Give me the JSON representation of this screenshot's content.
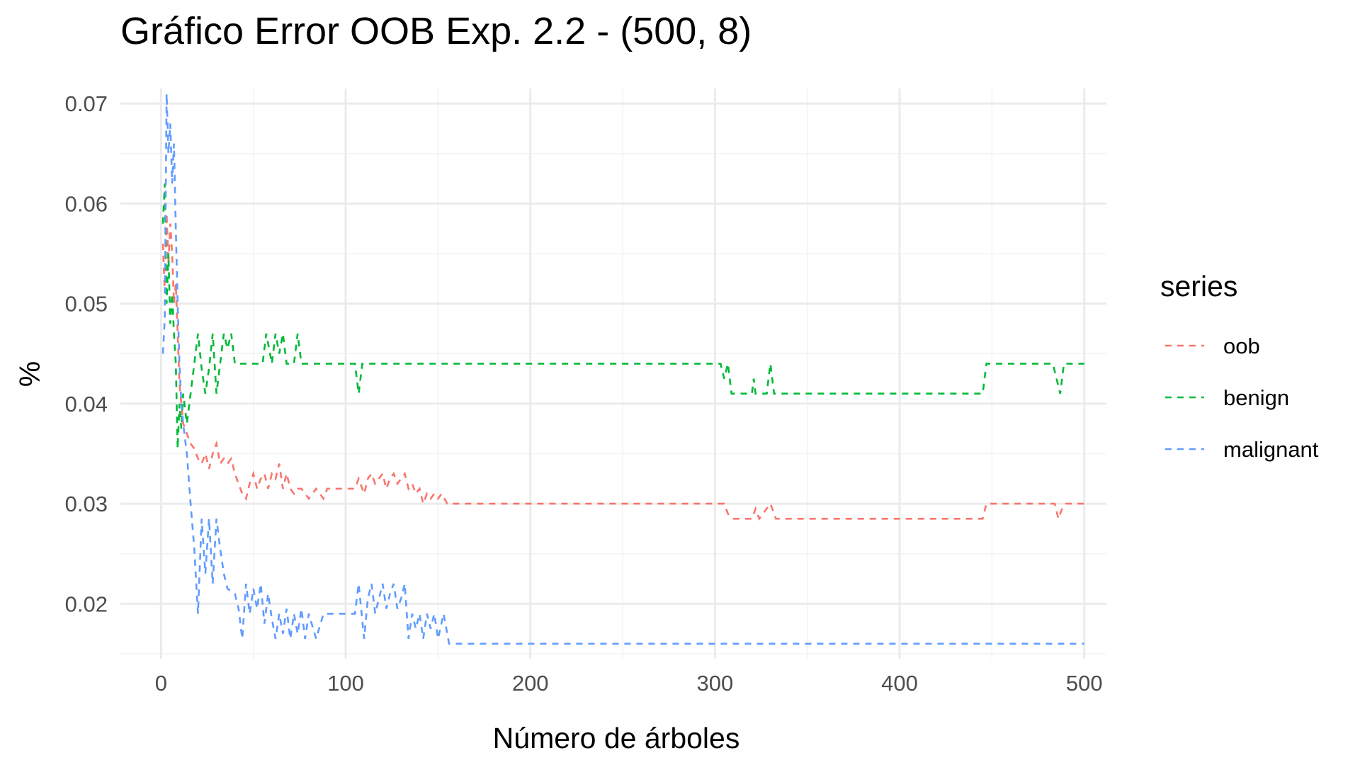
{
  "chart_data": {
    "type": "line",
    "title": "Gráfico Error OOB Exp. 2.2 - (500, 8)",
    "xlabel": "Número de árboles",
    "ylabel": "%",
    "xlim": [
      -22,
      512
    ],
    "ylim": [
      0.0145,
      0.0715
    ],
    "x_ticks": [
      0,
      100,
      200,
      300,
      400,
      500
    ],
    "x_tick_labels": [
      "0",
      "100",
      "200",
      "300",
      "400",
      "500"
    ],
    "x_minor_ticks": [
      50,
      150,
      250,
      350,
      450
    ],
    "y_ticks": [
      0.02,
      0.03,
      0.04,
      0.05,
      0.06,
      0.07
    ],
    "y_tick_labels": [
      "0.02",
      "0.03",
      "0.04",
      "0.05",
      "0.06",
      "0.07"
    ],
    "y_minor_ticks": [
      0.015,
      0.025,
      0.035,
      0.045,
      0.055,
      0.065
    ],
    "grid": true,
    "line_style": "dashed",
    "legend": {
      "title": "series",
      "position": "right"
    },
    "series": [
      {
        "name": "oob",
        "color": "#F8766D",
        "points": [
          [
            1,
            0.056
          ],
          [
            2,
            0.051
          ],
          [
            3,
            0.059
          ],
          [
            4,
            0.054
          ],
          [
            5,
            0.058
          ],
          [
            6,
            0.055
          ],
          [
            7,
            0.05
          ],
          [
            8,
            0.052
          ],
          [
            9,
            0.047
          ],
          [
            10,
            0.042
          ],
          [
            11,
            0.04
          ],
          [
            12,
            0.038
          ],
          [
            14,
            0.037
          ],
          [
            16,
            0.036
          ],
          [
            18,
            0.0355
          ],
          [
            20,
            0.0345
          ],
          [
            22,
            0.034
          ],
          [
            24,
            0.035
          ],
          [
            26,
            0.0335
          ],
          [
            28,
            0.035
          ],
          [
            30,
            0.036
          ],
          [
            32,
            0.034
          ],
          [
            34,
            0.0345
          ],
          [
            36,
            0.034
          ],
          [
            38,
            0.0345
          ],
          [
            40,
            0.033
          ],
          [
            42,
            0.032
          ],
          [
            44,
            0.031
          ],
          [
            46,
            0.0305
          ],
          [
            48,
            0.032
          ],
          [
            50,
            0.033
          ],
          [
            52,
            0.0315
          ],
          [
            54,
            0.0325
          ],
          [
            56,
            0.033
          ],
          [
            58,
            0.0315
          ],
          [
            60,
            0.033
          ],
          [
            62,
            0.0325
          ],
          [
            64,
            0.034
          ],
          [
            66,
            0.0315
          ],
          [
            68,
            0.033
          ],
          [
            70,
            0.0315
          ],
          [
            72,
            0.031
          ],
          [
            74,
            0.0315
          ],
          [
            76,
            0.0315
          ],
          [
            78,
            0.031
          ],
          [
            80,
            0.0305
          ],
          [
            84,
            0.0315
          ],
          [
            88,
            0.0305
          ],
          [
            90,
            0.0315
          ],
          [
            100,
            0.0315
          ],
          [
            105,
            0.0315
          ],
          [
            107,
            0.0325
          ],
          [
            110,
            0.031
          ],
          [
            112,
            0.0325
          ],
          [
            114,
            0.033
          ],
          [
            116,
            0.032
          ],
          [
            118,
            0.0325
          ],
          [
            120,
            0.033
          ],
          [
            122,
            0.0315
          ],
          [
            124,
            0.0325
          ],
          [
            126,
            0.033
          ],
          [
            128,
            0.032
          ],
          [
            130,
            0.0325
          ],
          [
            132,
            0.033
          ],
          [
            134,
            0.0315
          ],
          [
            136,
            0.032
          ],
          [
            138,
            0.031
          ],
          [
            140,
            0.0315
          ],
          [
            142,
            0.03
          ],
          [
            144,
            0.031
          ],
          [
            146,
            0.0305
          ],
          [
            148,
            0.031
          ],
          [
            150,
            0.0305
          ],
          [
            152,
            0.031
          ],
          [
            155,
            0.03
          ],
          [
            200,
            0.03
          ],
          [
            250,
            0.03
          ],
          [
            305,
            0.03
          ],
          [
            307,
            0.029
          ],
          [
            310,
            0.0285
          ],
          [
            320,
            0.0285
          ],
          [
            322,
            0.0295
          ],
          [
            324,
            0.0285
          ],
          [
            330,
            0.03
          ],
          [
            333,
            0.0285
          ],
          [
            400,
            0.0285
          ],
          [
            445,
            0.0285
          ],
          [
            447,
            0.03
          ],
          [
            450,
            0.03
          ],
          [
            484,
            0.03
          ],
          [
            486,
            0.0285
          ],
          [
            488,
            0.0295
          ],
          [
            490,
            0.03
          ],
          [
            500,
            0.03
          ]
        ]
      },
      {
        "name": "benign",
        "color": "#00BA38",
        "points": [
          [
            1,
            0.058
          ],
          [
            2,
            0.062
          ],
          [
            3,
            0.05
          ],
          [
            4,
            0.055
          ],
          [
            5,
            0.048
          ],
          [
            6,
            0.051
          ],
          [
            7,
            0.047
          ],
          [
            8,
            0.044
          ],
          [
            9,
            0.0355
          ],
          [
            10,
            0.04
          ],
          [
            11,
            0.0375
          ],
          [
            12,
            0.041
          ],
          [
            14,
            0.038
          ],
          [
            16,
            0.041
          ],
          [
            18,
            0.044
          ],
          [
            20,
            0.047
          ],
          [
            22,
            0.0435
          ],
          [
            24,
            0.041
          ],
          [
            26,
            0.0435
          ],
          [
            28,
            0.047
          ],
          [
            30,
            0.041
          ],
          [
            32,
            0.044
          ],
          [
            34,
            0.047
          ],
          [
            36,
            0.0455
          ],
          [
            38,
            0.047
          ],
          [
            40,
            0.044
          ],
          [
            45,
            0.044
          ],
          [
            55,
            0.044
          ],
          [
            57,
            0.047
          ],
          [
            60,
            0.044
          ],
          [
            62,
            0.047
          ],
          [
            64,
            0.045
          ],
          [
            66,
            0.047
          ],
          [
            68,
            0.044
          ],
          [
            72,
            0.044
          ],
          [
            74,
            0.047
          ],
          [
            76,
            0.044
          ],
          [
            100,
            0.044
          ],
          [
            105,
            0.044
          ],
          [
            107,
            0.041
          ],
          [
            109,
            0.044
          ],
          [
            200,
            0.044
          ],
          [
            250,
            0.044
          ],
          [
            303,
            0.044
          ],
          [
            305,
            0.0425
          ],
          [
            307,
            0.044
          ],
          [
            309,
            0.041
          ],
          [
            320,
            0.041
          ],
          [
            321,
            0.0425
          ],
          [
            322,
            0.041
          ],
          [
            328,
            0.041
          ],
          [
            330,
            0.044
          ],
          [
            332,
            0.041
          ],
          [
            400,
            0.041
          ],
          [
            445,
            0.041
          ],
          [
            447,
            0.044
          ],
          [
            450,
            0.044
          ],
          [
            483,
            0.044
          ],
          [
            485,
            0.0425
          ],
          [
            487,
            0.041
          ],
          [
            489,
            0.044
          ],
          [
            500,
            0.044
          ]
        ]
      },
      {
        "name": "malignant",
        "color": "#619CFF",
        "points": [
          [
            1,
            0.045
          ],
          [
            2,
            0.0485
          ],
          [
            3,
            0.071
          ],
          [
            4,
            0.065
          ],
          [
            5,
            0.068
          ],
          [
            6,
            0.062
          ],
          [
            7,
            0.066
          ],
          [
            8,
            0.0575
          ],
          [
            9,
            0.05
          ],
          [
            10,
            0.044
          ],
          [
            11,
            0.04
          ],
          [
            12,
            0.038
          ],
          [
            14,
            0.035
          ],
          [
            16,
            0.03
          ],
          [
            18,
            0.0255
          ],
          [
            20,
            0.019
          ],
          [
            22,
            0.0285
          ],
          [
            24,
            0.023
          ],
          [
            26,
            0.0285
          ],
          [
            28,
            0.022
          ],
          [
            30,
            0.0285
          ],
          [
            32,
            0.0255
          ],
          [
            34,
            0.023
          ],
          [
            36,
            0.0215
          ],
          [
            40,
            0.021
          ],
          [
            42,
            0.0195
          ],
          [
            44,
            0.0165
          ],
          [
            46,
            0.022
          ],
          [
            48,
            0.019
          ],
          [
            50,
            0.0215
          ],
          [
            52,
            0.0195
          ],
          [
            54,
            0.022
          ],
          [
            56,
            0.018
          ],
          [
            58,
            0.021
          ],
          [
            60,
            0.0185
          ],
          [
            62,
            0.0165
          ],
          [
            64,
            0.019
          ],
          [
            66,
            0.017
          ],
          [
            68,
            0.0195
          ],
          [
            70,
            0.0165
          ],
          [
            72,
            0.019
          ],
          [
            74,
            0.017
          ],
          [
            76,
            0.0195
          ],
          [
            78,
            0.0165
          ],
          [
            80,
            0.019
          ],
          [
            84,
            0.0165
          ],
          [
            88,
            0.019
          ],
          [
            95,
            0.019
          ],
          [
            105,
            0.019
          ],
          [
            107,
            0.022
          ],
          [
            110,
            0.0165
          ],
          [
            112,
            0.0205
          ],
          [
            114,
            0.022
          ],
          [
            116,
            0.019
          ],
          [
            118,
            0.0205
          ],
          [
            120,
            0.022
          ],
          [
            122,
            0.0195
          ],
          [
            124,
            0.021
          ],
          [
            126,
            0.022
          ],
          [
            128,
            0.0195
          ],
          [
            130,
            0.0205
          ],
          [
            132,
            0.022
          ],
          [
            134,
            0.0165
          ],
          [
            136,
            0.019
          ],
          [
            138,
            0.0175
          ],
          [
            140,
            0.019
          ],
          [
            142,
            0.0165
          ],
          [
            144,
            0.019
          ],
          [
            146,
            0.0175
          ],
          [
            148,
            0.019
          ],
          [
            150,
            0.0165
          ],
          [
            153,
            0.019
          ],
          [
            156,
            0.016
          ],
          [
            200,
            0.016
          ],
          [
            300,
            0.016
          ],
          [
            400,
            0.016
          ],
          [
            500,
            0.016
          ]
        ]
      }
    ]
  }
}
